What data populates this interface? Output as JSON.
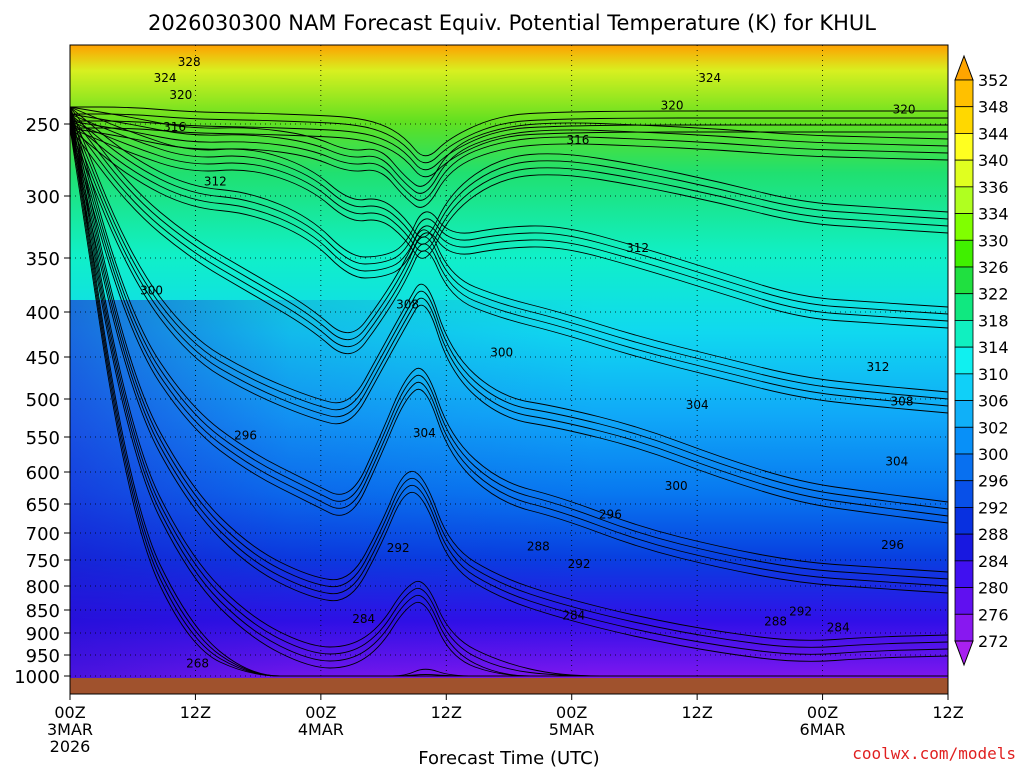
{
  "chart_data": {
    "type": "heatmap",
    "title": "2026030300 NAM Forecast Equiv. Potential Temperature (K) for KHUL",
    "xlabel": "Forecast Time (UTC)",
    "ylabel": "",
    "x_ticks": [
      {
        "lines": [
          "00Z",
          "3MAR",
          "2026"
        ]
      },
      {
        "lines": [
          "12Z"
        ]
      },
      {
        "lines": [
          "00Z",
          "4MAR"
        ]
      },
      {
        "lines": [
          "12Z"
        ]
      },
      {
        "lines": [
          "00Z",
          "5MAR"
        ]
      },
      {
        "lines": [
          "12Z"
        ]
      },
      {
        "lines": [
          "00Z",
          "6MAR"
        ]
      },
      {
        "lines": [
          "12Z"
        ]
      }
    ],
    "x_range_hours": [
      0,
      84
    ],
    "y_ticks": [
      "250",
      "300",
      "350",
      "400",
      "450",
      "500",
      "550",
      "600",
      "650",
      "700",
      "750",
      "800",
      "850",
      "900",
      "950",
      "1000"
    ],
    "y_values_hpa": [
      250,
      300,
      350,
      400,
      450,
      500,
      550,
      600,
      650,
      700,
      750,
      800,
      850,
      900,
      950,
      1000
    ],
    "y_range_hpa": [
      200,
      1020
    ],
    "grid": "dotted",
    "colorbar": {
      "labels": [
        "352",
        "348",
        "344",
        "340",
        "336",
        "334",
        "330",
        "326",
        "322",
        "318",
        "314",
        "310",
        "306",
        "302",
        "300",
        "296",
        "292",
        "288",
        "284",
        "280",
        "276",
        "272"
      ],
      "colors": [
        "#ffa500",
        "#ffc000",
        "#ffd800",
        "#ffff20",
        "#e0ff20",
        "#b0ff20",
        "#80ff00",
        "#40f000",
        "#20e040",
        "#10e880",
        "#10f0c0",
        "#10f0f0",
        "#10d0f8",
        "#10b0f8",
        "#0890f8",
        "#0870f0",
        "#0850e8",
        "#0830e0",
        "#1818e0",
        "#4010f0",
        "#6010f0",
        "#8818f0",
        "#a820f0"
      ]
    },
    "contour_labels": [
      {
        "text": "328",
        "t": 11.4,
        "p": 207
      },
      {
        "text": "324",
        "t": 9.1,
        "p": 218
      },
      {
        "text": "324",
        "t": 61.2,
        "p": 218
      },
      {
        "text": "320",
        "t": 10.6,
        "p": 230
      },
      {
        "text": "320",
        "t": 57.6,
        "p": 237
      },
      {
        "text": "320",
        "t": 79.8,
        "p": 240
      },
      {
        "text": "316",
        "t": 10.0,
        "p": 252
      },
      {
        "text": "316",
        "t": 48.6,
        "p": 261
      },
      {
        "text": "312",
        "t": 13.9,
        "p": 290
      },
      {
        "text": "312",
        "t": 54.3,
        "p": 342
      },
      {
        "text": "312",
        "t": 77.3,
        "p": 462
      },
      {
        "text": "308",
        "t": 32.3,
        "p": 393
      },
      {
        "text": "308",
        "t": 79.6,
        "p": 503
      },
      {
        "text": "300",
        "t": 7.8,
        "p": 380
      },
      {
        "text": "300",
        "t": 41.3,
        "p": 445
      },
      {
        "text": "300",
        "t": 58.0,
        "p": 622
      },
      {
        "text": "304",
        "t": 33.9,
        "p": 545
      },
      {
        "text": "304",
        "t": 60.0,
        "p": 508
      },
      {
        "text": "304",
        "t": 79.1,
        "p": 585
      },
      {
        "text": "296",
        "t": 16.8,
        "p": 548
      },
      {
        "text": "296",
        "t": 51.7,
        "p": 668
      },
      {
        "text": "296",
        "t": 78.7,
        "p": 722
      },
      {
        "text": "292",
        "t": 31.4,
        "p": 728
      },
      {
        "text": "292",
        "t": 48.7,
        "p": 758
      },
      {
        "text": "292",
        "t": 69.9,
        "p": 853
      },
      {
        "text": "288",
        "t": 44.8,
        "p": 725
      },
      {
        "text": "288",
        "t": 67.5,
        "p": 875
      },
      {
        "text": "284",
        "t": 28.1,
        "p": 870
      },
      {
        "text": "284",
        "t": 48.2,
        "p": 862
      },
      {
        "text": "284",
        "t": 73.5,
        "p": 888
      },
      {
        "text": "268",
        "t": 12.2,
        "p": 970
      }
    ],
    "ground_color": "#a0522d"
  },
  "credit": "coolwx.com/models"
}
